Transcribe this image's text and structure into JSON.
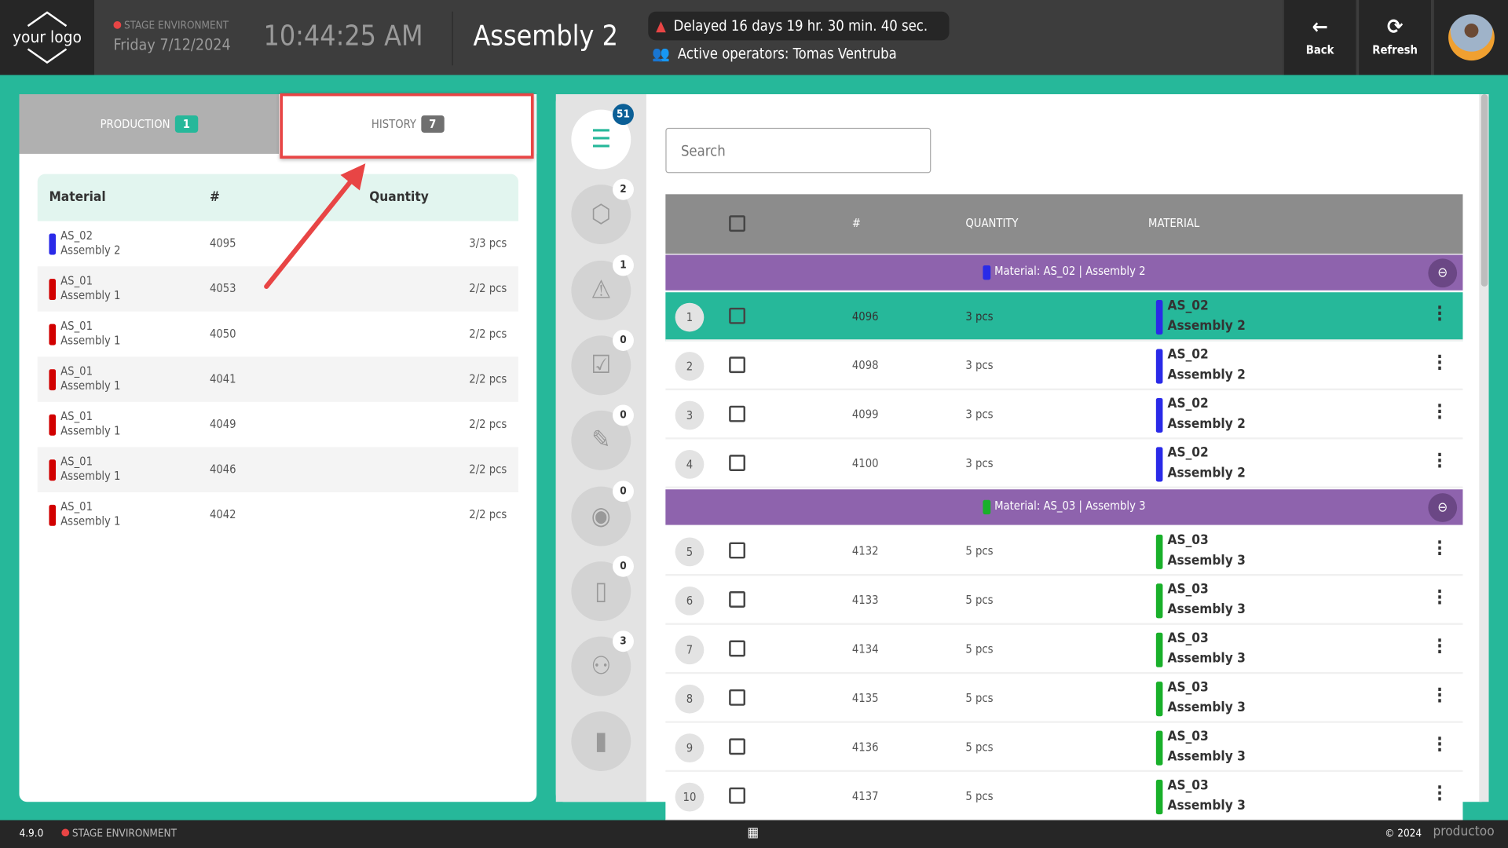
{
  "header": {
    "logo": "your logo",
    "environment": "STAGE ENVIRONMENT",
    "date": "Friday 7/12/2024",
    "time": "10:44:25 AM",
    "title": "Assembly 2",
    "delay": "Delayed 16 days 19 hr. 30 min. 40 sec.",
    "operators": "Active operators: Tomas Ventruba",
    "back": "Back",
    "refresh": "Refresh"
  },
  "tabs": {
    "production": {
      "label": "PRODUCTION",
      "count": "1"
    },
    "history": {
      "label": "HISTORY",
      "count": "7"
    }
  },
  "history_table": {
    "headers": [
      "Material",
      "#",
      "Quantity"
    ],
    "rows": [
      {
        "material": "AS_02",
        "assembly": "Assembly 2",
        "num": "4095",
        "qty": "3/3 pcs",
        "color": "#2a2ae8"
      },
      {
        "material": "AS_01",
        "assembly": "Assembly 1",
        "num": "4053",
        "qty": "2/2 pcs",
        "color": "#d10000"
      },
      {
        "material": "AS_01",
        "assembly": "Assembly 1",
        "num": "4050",
        "qty": "2/2 pcs",
        "color": "#d10000"
      },
      {
        "material": "AS_01",
        "assembly": "Assembly 1",
        "num": "4041",
        "qty": "2/2 pcs",
        "color": "#d10000"
      },
      {
        "material": "AS_01",
        "assembly": "Assembly 1",
        "num": "4049",
        "qty": "2/2 pcs",
        "color": "#d10000"
      },
      {
        "material": "AS_01",
        "assembly": "Assembly 1",
        "num": "4046",
        "qty": "2/2 pcs",
        "color": "#d10000"
      },
      {
        "material": "AS_01",
        "assembly": "Assembly 1",
        "num": "4042",
        "qty": "2/2 pcs",
        "color": "#d10000"
      }
    ]
  },
  "sidebar": [
    {
      "icon": "task-list-icon",
      "count": "51"
    },
    {
      "icon": "box-icon",
      "count": "2"
    },
    {
      "icon": "pallet-warning-icon",
      "count": "1"
    },
    {
      "icon": "checklist-icon",
      "count": "0"
    },
    {
      "icon": "document-edit-icon",
      "count": "0"
    },
    {
      "icon": "eye-icon",
      "count": "0"
    },
    {
      "icon": "file-icon",
      "count": "0"
    },
    {
      "icon": "users-icon",
      "count": "3"
    },
    {
      "icon": "bar-chart-icon",
      "count": ""
    }
  ],
  "search": {
    "placeholder": "Search"
  },
  "orders": {
    "headers": [
      "#",
      "QUANTITY",
      "MATERIAL"
    ],
    "groups": [
      {
        "label": "Material: AS_02 | Assembly 2",
        "color": "#2a2ae8",
        "rows": [
          {
            "idx": "1",
            "num": "4096",
            "qty": "3 pcs",
            "material": "AS_02",
            "assembly": "Assembly 2",
            "selected": true
          },
          {
            "idx": "2",
            "num": "4098",
            "qty": "3 pcs",
            "material": "AS_02",
            "assembly": "Assembly 2"
          },
          {
            "idx": "3",
            "num": "4099",
            "qty": "3 pcs",
            "material": "AS_02",
            "assembly": "Assembly 2"
          },
          {
            "idx": "4",
            "num": "4100",
            "qty": "3 pcs",
            "material": "AS_02",
            "assembly": "Assembly 2"
          }
        ]
      },
      {
        "label": "Material: AS_03 | Assembly 3",
        "color": "#19b02a",
        "rows": [
          {
            "idx": "5",
            "num": "4132",
            "qty": "5 pcs",
            "material": "AS_03",
            "assembly": "Assembly 3"
          },
          {
            "idx": "6",
            "num": "4133",
            "qty": "5 pcs",
            "material": "AS_03",
            "assembly": "Assembly 3"
          },
          {
            "idx": "7",
            "num": "4134",
            "qty": "5 pcs",
            "material": "AS_03",
            "assembly": "Assembly 3"
          },
          {
            "idx": "8",
            "num": "4135",
            "qty": "5 pcs",
            "material": "AS_03",
            "assembly": "Assembly 3"
          },
          {
            "idx": "9",
            "num": "4136",
            "qty": "5 pcs",
            "material": "AS_03",
            "assembly": "Assembly 3"
          },
          {
            "idx": "10",
            "num": "4137",
            "qty": "5 pcs",
            "material": "AS_03",
            "assembly": "Assembly 3"
          }
        ]
      }
    ]
  },
  "footer": {
    "version": "4.9.0",
    "environment": "STAGE ENVIRONMENT",
    "copyright": "© 2024",
    "brand": "productoo"
  },
  "colors": {
    "accent": "#26b89a",
    "group": "#8e63ad",
    "alert": "#e84545"
  }
}
